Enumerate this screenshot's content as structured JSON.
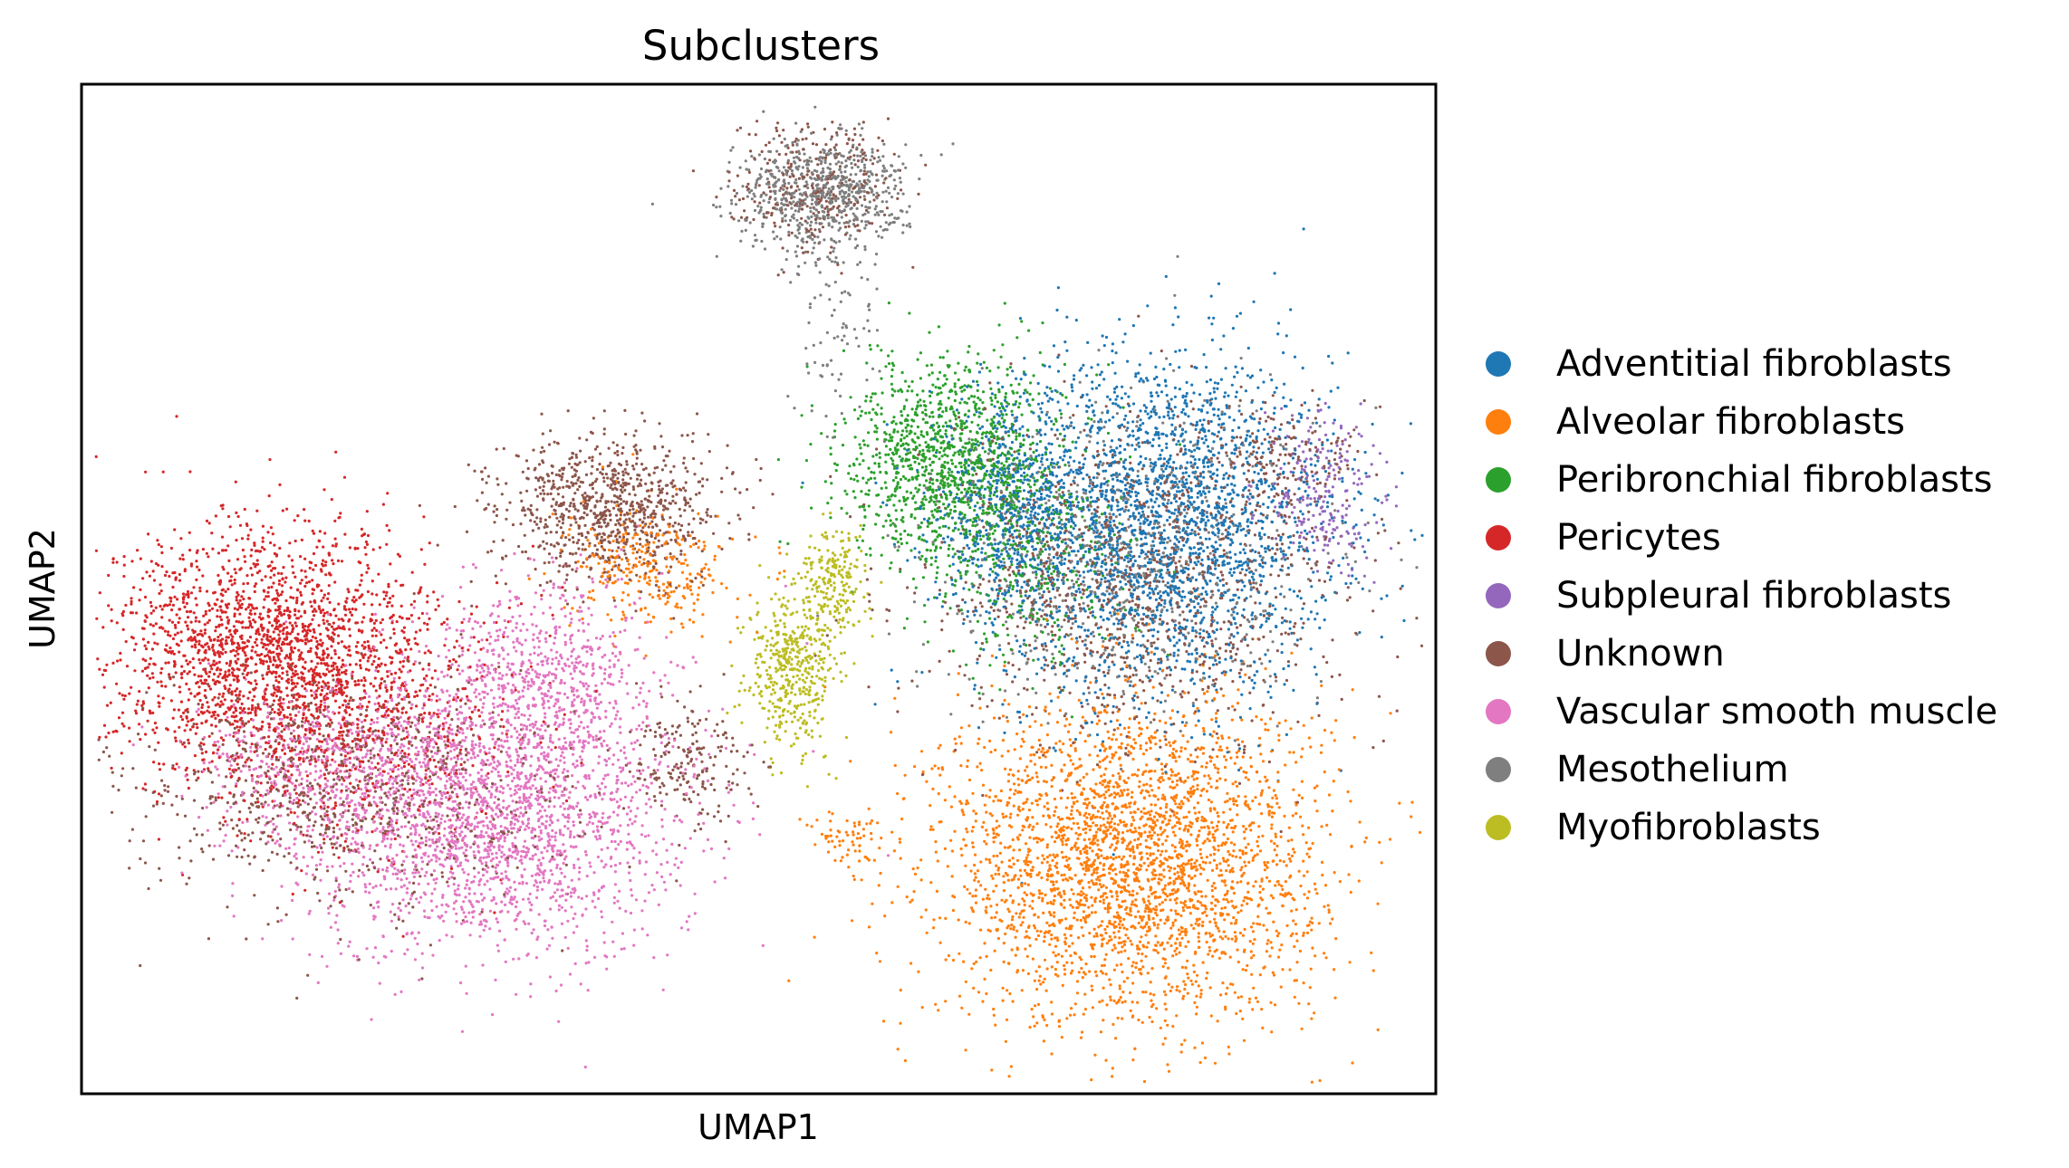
{
  "chart_data": {
    "type": "scatter",
    "title": "Subclusters",
    "xlabel": "UMAP1",
    "ylabel": "UMAP2",
    "xticks": [],
    "yticks": [],
    "grid": false,
    "legend_position": "right",
    "xlim": [
      0,
      100
    ],
    "ylim": [
      0,
      100
    ],
    "series": [
      {
        "name": "Adventitial fibroblasts",
        "color": "#1f77b4",
        "clusters": [
          {
            "cx": 79.5,
            "cy": 56.5,
            "sx": 6.5,
            "sy": 8.5,
            "n": 2600
          },
          {
            "cx": 68.5,
            "cy": 58,
            "sx": 3,
            "sy": 5,
            "n": 500
          }
        ]
      },
      {
        "name": "Alveolar fibroblasts",
        "color": "#ff7f0e",
        "clusters": [
          {
            "cx": 77.5,
            "cy": 23,
            "sx": 7,
            "sy": 8,
            "n": 3000
          },
          {
            "cx": 42,
            "cy": 52,
            "sx": 3,
            "sy": 3,
            "n": 300
          },
          {
            "cx": 56.5,
            "cy": 25.5,
            "sx": 1.5,
            "sy": 1.5,
            "n": 60
          }
        ]
      },
      {
        "name": "Peribronchial fibroblasts",
        "color": "#2ca02c",
        "clusters": [
          {
            "cx": 64.5,
            "cy": 62.5,
            "sx": 4,
            "sy": 5,
            "n": 1300
          },
          {
            "cx": 70,
            "cy": 52,
            "sx": 4,
            "sy": 5,
            "n": 300
          }
        ]
      },
      {
        "name": "Pericytes",
        "color": "#d62728",
        "clusters": [
          {
            "cx": 14,
            "cy": 44,
            "sx": 6,
            "sy": 6,
            "n": 2000
          },
          {
            "cx": 21,
            "cy": 36,
            "sx": 6,
            "sy": 6,
            "n": 500
          }
        ]
      },
      {
        "name": "Subpleural fibroblasts",
        "color": "#9467bd",
        "clusters": [
          {
            "cx": 91.5,
            "cy": 59.5,
            "sx": 2.2,
            "sy": 4,
            "n": 220
          }
        ]
      },
      {
        "name": "Unknown",
        "color": "#8c564b",
        "clusters": [
          {
            "cx": 39,
            "cy": 58,
            "sx": 4,
            "sy": 3.5,
            "n": 900
          },
          {
            "cx": 19,
            "cy": 30,
            "sx": 8,
            "sy": 6,
            "n": 900
          },
          {
            "cx": 78,
            "cy": 50,
            "sx": 8,
            "sy": 8,
            "n": 1100
          },
          {
            "cx": 45,
            "cy": 33,
            "sx": 2.5,
            "sy": 3,
            "n": 200
          },
          {
            "cx": 54,
            "cy": 90,
            "sx": 3,
            "sy": 3,
            "n": 300
          },
          {
            "cx": 88,
            "cy": 63,
            "sx": 3,
            "sy": 3,
            "n": 180
          }
        ]
      },
      {
        "name": "Vascular smooth muscle",
        "color": "#e377c2",
        "clusters": [
          {
            "cx": 30,
            "cy": 28,
            "sx": 7,
            "sy": 7,
            "n": 2400
          },
          {
            "cx": 34,
            "cy": 42,
            "sx": 4,
            "sy": 5,
            "n": 600
          },
          {
            "cx": 18,
            "cy": 32,
            "sx": 5,
            "sy": 4,
            "n": 500
          }
        ]
      },
      {
        "name": "Mesothelium",
        "color": "#7f7f7f",
        "clusters": [
          {
            "cx": 54.5,
            "cy": 89,
            "sx": 3,
            "sy": 2.8,
            "n": 700
          },
          {
            "cx": 55.5,
            "cy": 76,
            "sx": 1.5,
            "sy": 6,
            "n": 90
          },
          {
            "cx": 77,
            "cy": 53,
            "sx": 7,
            "sy": 8,
            "n": 700
          }
        ]
      },
      {
        "name": "Myofibroblasts",
        "color": "#bcbd22",
        "clusters": [
          {
            "cx": 52.5,
            "cy": 42,
            "sx": 1.6,
            "sy": 3.8,
            "n": 450
          },
          {
            "cx": 55.5,
            "cy": 51,
            "sx": 1.2,
            "sy": 2.5,
            "n": 200
          }
        ]
      }
    ]
  }
}
